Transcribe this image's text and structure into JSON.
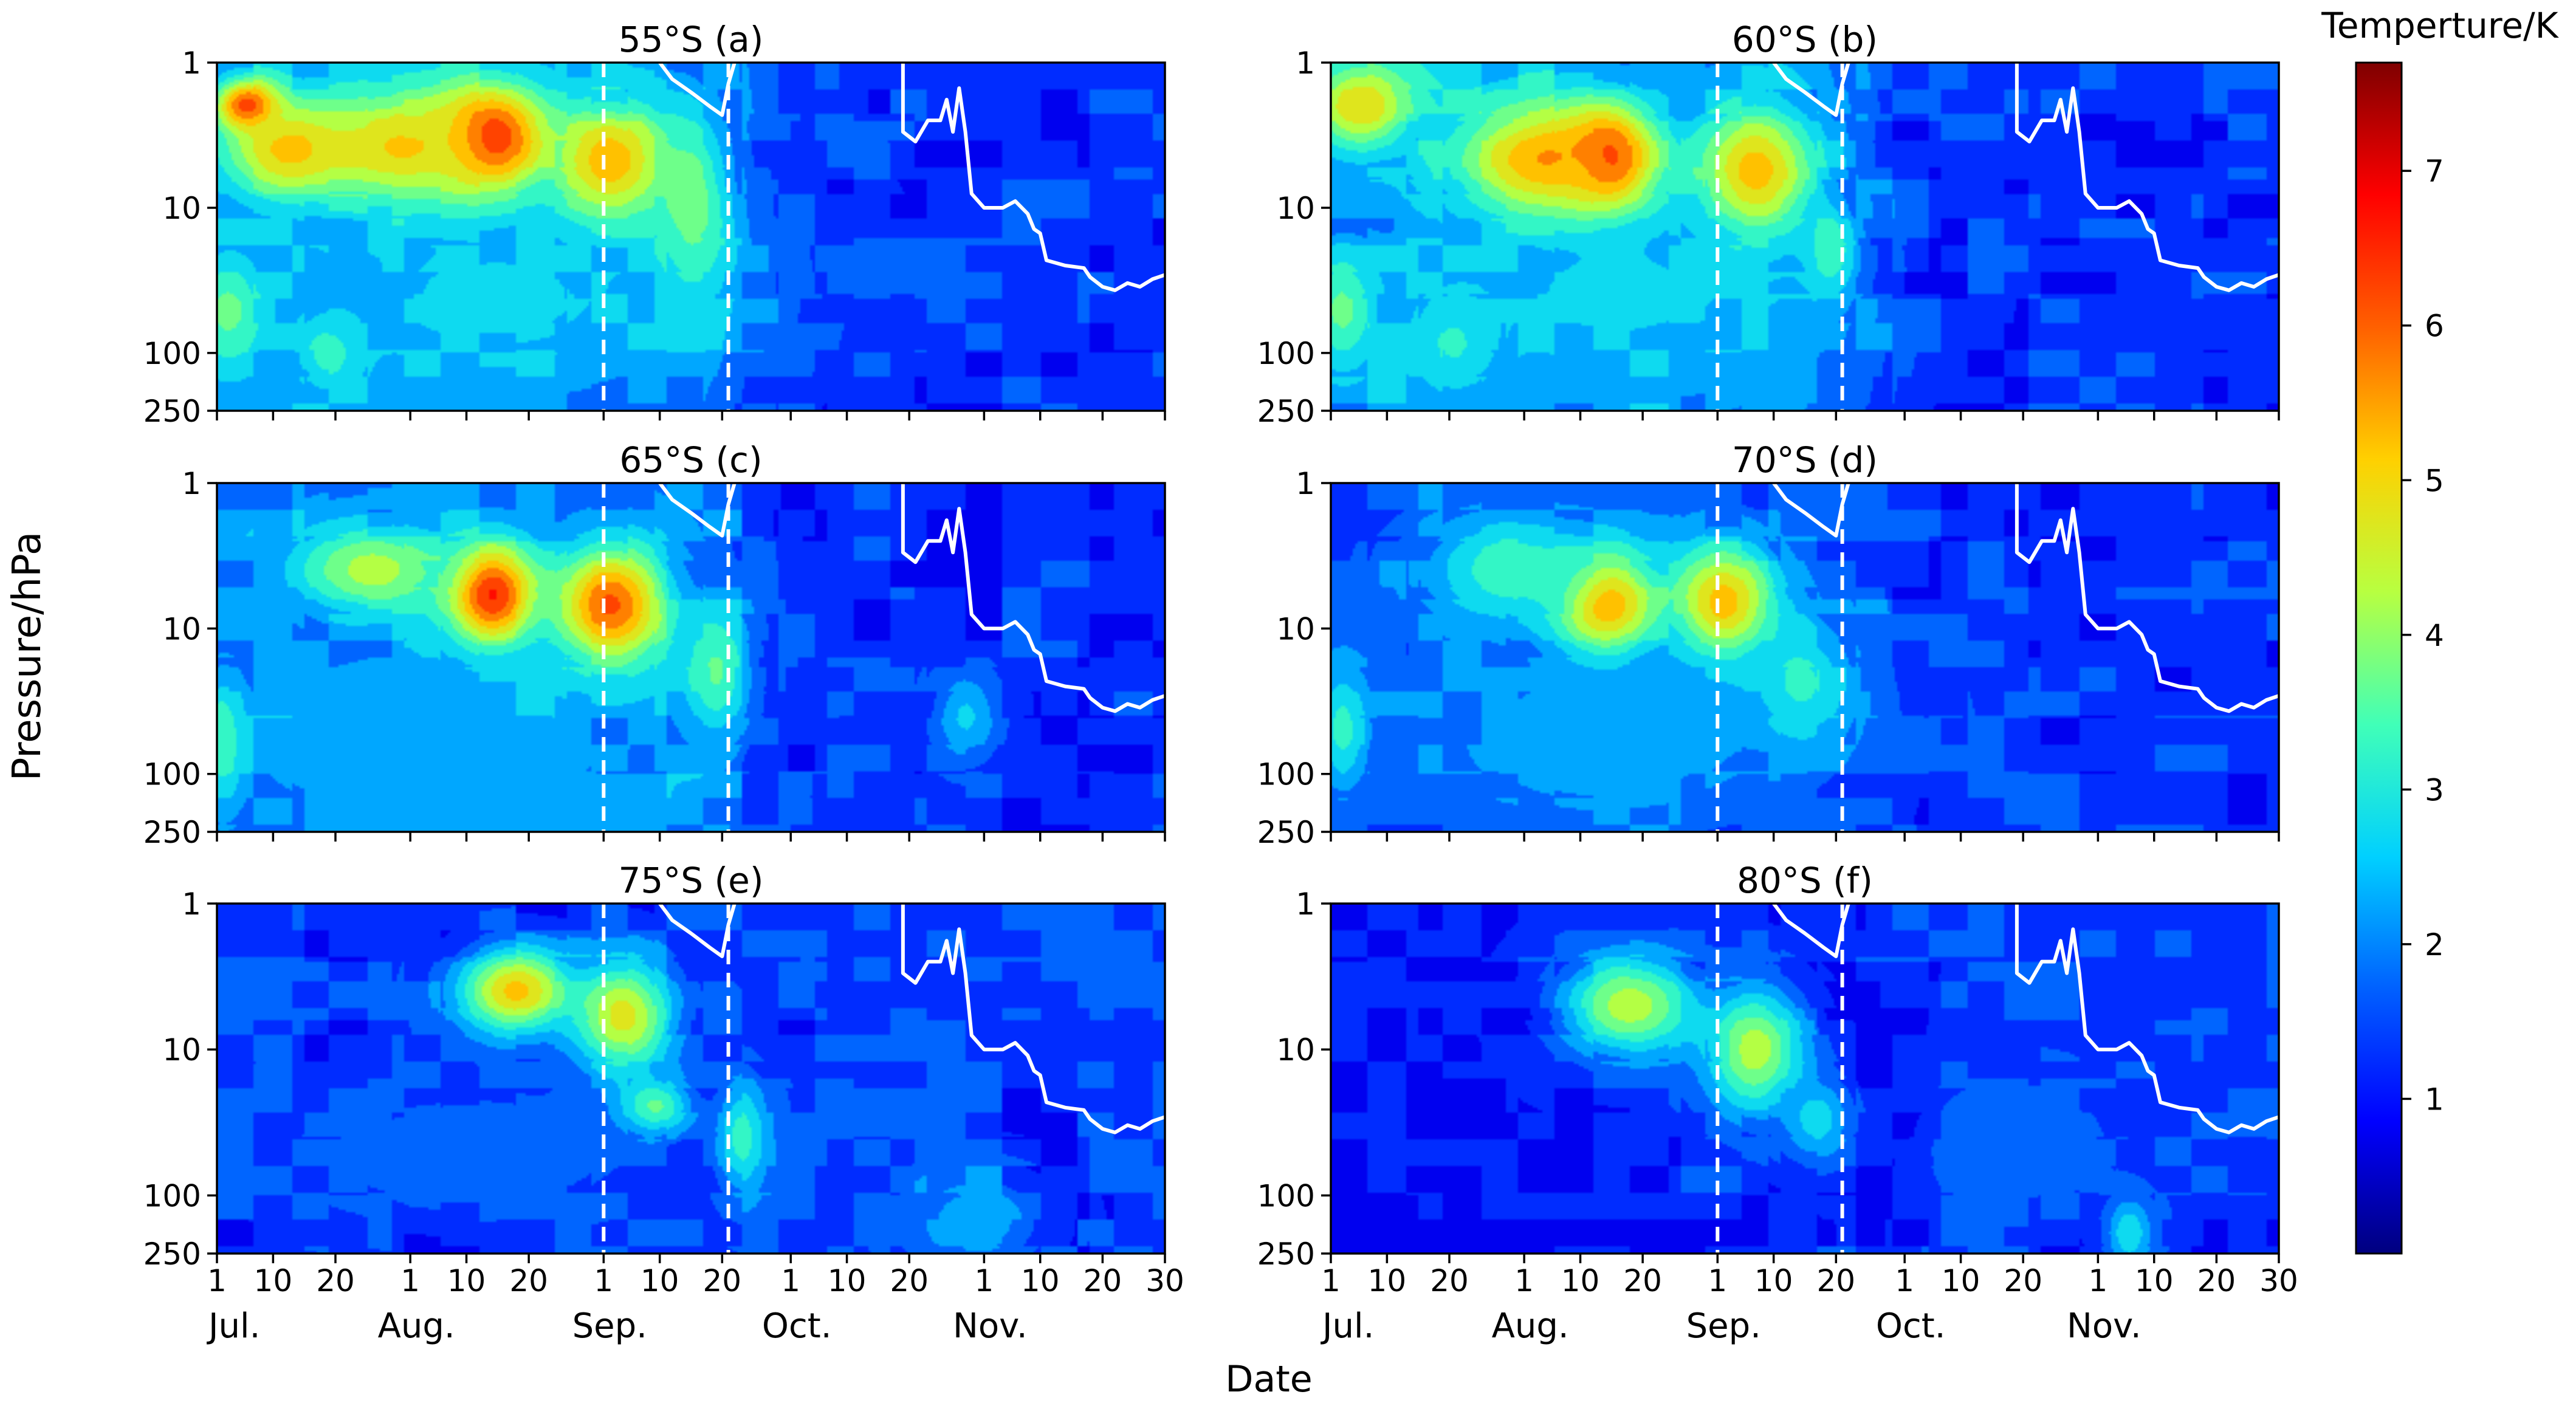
{
  "figure": {
    "ylabel": "Pressure/hPa",
    "xlabel": "Date",
    "colorbar_label": "Temperture/K",
    "colorbar_ticks": [
      1,
      2,
      3,
      4,
      5,
      6,
      7
    ],
    "colorbar_range": [
      0,
      7.7
    ]
  },
  "chart_data": [
    {
      "type": "heatmap",
      "title": "55°S (a)",
      "latitude": "55°S",
      "xlabel": "Date",
      "ylabel": "Pressure/hPa",
      "yticks": [
        "1",
        "10",
        "100",
        "250"
      ],
      "ylim": [
        250,
        1
      ],
      "xticks": [
        "1",
        "10",
        "20",
        "1",
        "10",
        "20",
        "1",
        "10",
        "20",
        "1",
        "10",
        "20",
        "1",
        "10",
        "20",
        "30"
      ],
      "months": [
        "Jul.",
        "Aug.",
        "Sep.",
        "Oct.",
        "Nov."
      ],
      "xlim_days": [
        0,
        152
      ],
      "dashed_lines_days": [
        62,
        82
      ],
      "hotspots": [
        {
          "day": 5,
          "hpa": 2,
          "value": 6.6,
          "day_spread": 5,
          "log_spread": 0.18
        },
        {
          "day": 12,
          "hpa": 4,
          "value": 5.3,
          "day_spread": 10,
          "log_spread": 0.3
        },
        {
          "day": 44,
          "hpa": 3.5,
          "value": 7.4,
          "day_spread": 8,
          "log_spread": 0.35
        },
        {
          "day": 30,
          "hpa": 4,
          "value": 5.2,
          "day_spread": 16,
          "log_spread": 0.4
        },
        {
          "day": 63,
          "hpa": 5,
          "value": 5.6,
          "day_spread": 9,
          "log_spread": 0.4
        },
        {
          "day": 76,
          "hpa": 10,
          "value": 4.0,
          "day_spread": 6,
          "log_spread": 0.6
        },
        {
          "day": 2,
          "hpa": 50,
          "value": 3.8,
          "day_spread": 5,
          "log_spread": 0.35
        },
        {
          "day": 18,
          "hpa": 100,
          "value": 3.6,
          "day_spread": 4,
          "log_spread": 0.2
        },
        {
          "day": 45,
          "hpa": 40,
          "value": 2.6,
          "day_spread": 30,
          "log_spread": 0.6
        }
      ],
      "background": {
        "early": 2.3,
        "late": 1.3,
        "transition_day": 85,
        "noise": 0.7
      }
    },
    {
      "type": "heatmap",
      "title": "60°S (b)",
      "latitude": "60°S",
      "xlabel": "Date",
      "ylabel": "Pressure/hPa",
      "yticks": [
        "1",
        "10",
        "100",
        "250"
      ],
      "ylim": [
        250,
        1
      ],
      "xticks": [
        "1",
        "10",
        "20",
        "1",
        "10",
        "20",
        "1",
        "10",
        "20",
        "1",
        "10",
        "20",
        "1",
        "10",
        "20",
        "30"
      ],
      "months": [
        "Jul.",
        "Aug.",
        "Sep.",
        "Oct.",
        "Nov."
      ],
      "xlim_days": [
        0,
        152
      ],
      "dashed_lines_days": [
        62,
        82
      ],
      "hotspots": [
        {
          "day": 44,
          "hpa": 5,
          "value": 7.4,
          "day_spread": 7,
          "log_spread": 0.35
        },
        {
          "day": 35,
          "hpa": 5,
          "value": 5.8,
          "day_spread": 14,
          "log_spread": 0.4
        },
        {
          "day": 68,
          "hpa": 6,
          "value": 5.5,
          "day_spread": 9,
          "log_spread": 0.45
        },
        {
          "day": 5,
          "hpa": 2,
          "value": 5.0,
          "day_spread": 8,
          "log_spread": 0.3
        },
        {
          "day": 2,
          "hpa": 50,
          "value": 3.8,
          "day_spread": 5,
          "log_spread": 0.35
        },
        {
          "day": 20,
          "hpa": 80,
          "value": 3.4,
          "day_spread": 6,
          "log_spread": 0.3
        },
        {
          "day": 80,
          "hpa": 20,
          "value": 3.6,
          "day_spread": 4,
          "log_spread": 0.3
        },
        {
          "day": 45,
          "hpa": 40,
          "value": 2.6,
          "day_spread": 30,
          "log_spread": 0.6
        }
      ],
      "background": {
        "early": 2.2,
        "late": 1.3,
        "transition_day": 85,
        "noise": 0.7
      }
    },
    {
      "type": "heatmap",
      "title": "65°S (c)",
      "latitude": "65°S",
      "xlabel": "Date",
      "ylabel": "Pressure/hPa",
      "yticks": [
        "1",
        "10",
        "100",
        "250"
      ],
      "ylim": [
        250,
        1
      ],
      "xticks": [
        "1",
        "10",
        "20",
        "1",
        "10",
        "20",
        "1",
        "10",
        "20",
        "1",
        "10",
        "20",
        "1",
        "10",
        "20",
        "30"
      ],
      "months": [
        "Jul.",
        "Aug.",
        "Sep.",
        "Oct.",
        "Nov."
      ],
      "xlim_days": [
        0,
        152
      ],
      "dashed_lines_days": [
        62,
        82
      ],
      "hotspots": [
        {
          "day": 44,
          "hpa": 6,
          "value": 6.9,
          "day_spread": 7,
          "log_spread": 0.35
        },
        {
          "day": 63,
          "hpa": 7,
          "value": 6.2,
          "day_spread": 9,
          "log_spread": 0.4
        },
        {
          "day": 25,
          "hpa": 4,
          "value": 4.3,
          "day_spread": 12,
          "log_spread": 0.3
        },
        {
          "day": 1,
          "hpa": 60,
          "value": 3.8,
          "day_spread": 3,
          "log_spread": 0.4
        },
        {
          "day": 80,
          "hpa": 20,
          "value": 3.6,
          "day_spread": 5,
          "log_spread": 0.4
        },
        {
          "day": 120,
          "hpa": 40,
          "value": 2.6,
          "day_spread": 5,
          "log_spread": 0.3
        },
        {
          "day": 30,
          "hpa": 60,
          "value": 2.5,
          "day_spread": 28,
          "log_spread": 0.6
        }
      ],
      "background": {
        "early": 2.0,
        "late": 1.3,
        "transition_day": 88,
        "noise": 0.7
      }
    },
    {
      "type": "heatmap",
      "title": "70°S (d)",
      "latitude": "70°S",
      "xlabel": "Date",
      "ylabel": "Pressure/hPa",
      "yticks": [
        "1",
        "10",
        "100",
        "250"
      ],
      "ylim": [
        250,
        1
      ],
      "xticks": [
        "1",
        "10",
        "20",
        "1",
        "10",
        "20",
        "1",
        "10",
        "20",
        "1",
        "10",
        "20",
        "1",
        "10",
        "20",
        "30"
      ],
      "months": [
        "Jul.",
        "Aug.",
        "Sep.",
        "Oct.",
        "Nov."
      ],
      "xlim_days": [
        0,
        152
      ],
      "dashed_lines_days": [
        62,
        82
      ],
      "hotspots": [
        {
          "day": 44,
          "hpa": 7,
          "value": 6.2,
          "day_spread": 8,
          "log_spread": 0.35
        },
        {
          "day": 63,
          "hpa": 7,
          "value": 5.5,
          "day_spread": 8,
          "log_spread": 0.4
        },
        {
          "day": 30,
          "hpa": 4,
          "value": 3.5,
          "day_spread": 14,
          "log_spread": 0.35
        },
        {
          "day": 75,
          "hpa": 25,
          "value": 3.4,
          "day_spread": 8,
          "log_spread": 0.4
        },
        {
          "day": 2,
          "hpa": 50,
          "value": 3.3,
          "day_spread": 4,
          "log_spread": 0.4
        },
        {
          "day": 45,
          "hpa": 60,
          "value": 2.3,
          "day_spread": 30,
          "log_spread": 0.6
        }
      ],
      "background": {
        "early": 1.7,
        "late": 1.3,
        "transition_day": 88,
        "noise": 0.7
      }
    },
    {
      "type": "heatmap",
      "title": "75°S (e)",
      "latitude": "75°S",
      "xlabel": "Date",
      "ylabel": "Pressure/hPa",
      "yticks": [
        "1",
        "10",
        "100",
        "250"
      ],
      "ylim": [
        250,
        1
      ],
      "xticks": [
        "1",
        "10",
        "20",
        "1",
        "10",
        "20",
        "1",
        "10",
        "20",
        "1",
        "10",
        "20",
        "1",
        "10",
        "20",
        "30"
      ],
      "months": [
        "Jul.",
        "Aug.",
        "Sep.",
        "Oct.",
        "Nov."
      ],
      "xlim_days": [
        0,
        152
      ],
      "dashed_lines_days": [
        62,
        82
      ],
      "hotspots": [
        {
          "day": 48,
          "hpa": 4,
          "value": 5.2,
          "day_spread": 9,
          "log_spread": 0.3
        },
        {
          "day": 65,
          "hpa": 6,
          "value": 4.8,
          "day_spread": 8,
          "log_spread": 0.4
        },
        {
          "day": 70,
          "hpa": 25,
          "value": 4.2,
          "day_spread": 6,
          "log_spread": 0.2
        },
        {
          "day": 84,
          "hpa": 40,
          "value": 3.4,
          "day_spread": 4,
          "log_spread": 0.4
        },
        {
          "day": 122,
          "hpa": 150,
          "value": 2.4,
          "day_spread": 10,
          "log_spread": 0.3
        },
        {
          "day": 40,
          "hpa": 50,
          "value": 1.8,
          "day_spread": 30,
          "log_spread": 0.5
        }
      ],
      "background": {
        "early": 1.3,
        "late": 1.4,
        "transition_day": 88,
        "noise": 0.7
      }
    },
    {
      "type": "heatmap",
      "title": "80°S (f)",
      "latitude": "80°S",
      "xlabel": "Date",
      "ylabel": "Pressure/hPa",
      "yticks": [
        "1",
        "10",
        "100",
        "250"
      ],
      "ylim": [
        250,
        1
      ],
      "xticks": [
        "1",
        "10",
        "20",
        "1",
        "10",
        "20",
        "1",
        "10",
        "20",
        "1",
        "10",
        "20",
        "1",
        "10",
        "20",
        "30"
      ],
      "months": [
        "Jul.",
        "Aug.",
        "Sep.",
        "Oct.",
        "Nov."
      ],
      "xlim_days": [
        0,
        152
      ],
      "dashed_lines_days": [
        62,
        82
      ],
      "hotspots": [
        {
          "day": 48,
          "hpa": 5,
          "value": 4.3,
          "day_spread": 11,
          "log_spread": 0.35
        },
        {
          "day": 68,
          "hpa": 10,
          "value": 4.3,
          "day_spread": 8,
          "log_spread": 0.45
        },
        {
          "day": 78,
          "hpa": 30,
          "value": 2.8,
          "day_spread": 6,
          "log_spread": 0.3
        },
        {
          "day": 128,
          "hpa": 180,
          "value": 2.9,
          "day_spread": 4,
          "log_spread": 0.25
        },
        {
          "day": 110,
          "hpa": 50,
          "value": 2.0,
          "day_spread": 12,
          "log_spread": 0.4
        }
      ],
      "background": {
        "early": 1.0,
        "late": 1.4,
        "transition_day": 88,
        "noise": 0.6
      }
    }
  ],
  "white_line": {
    "description": "white solid contour line present in each panel",
    "segment1": [
      [
        71,
        1
      ],
      [
        73,
        1.3
      ],
      [
        76,
        1.6
      ],
      [
        79,
        2
      ],
      [
        81,
        2.3
      ],
      [
        82,
        1.4
      ],
      [
        83,
        1
      ]
    ],
    "segment2": [
      [
        110,
        1
      ],
      [
        110,
        3
      ],
      [
        112,
        3.5
      ],
      [
        114,
        2.5
      ],
      [
        116,
        2.5
      ],
      [
        117,
        1.8
      ],
      [
        118,
        3
      ],
      [
        119,
        1.5
      ],
      [
        120,
        3
      ],
      [
        121,
        8
      ],
      [
        123,
        10
      ],
      [
        126,
        10
      ],
      [
        128,
        9
      ],
      [
        130,
        11
      ],
      [
        131,
        14
      ],
      [
        132,
        15
      ],
      [
        133,
        23
      ],
      [
        136,
        25
      ],
      [
        139,
        26
      ],
      [
        140,
        30
      ],
      [
        142,
        35
      ],
      [
        144,
        37
      ],
      [
        146,
        33
      ],
      [
        148,
        35
      ],
      [
        150,
        31
      ],
      [
        152,
        29
      ]
    ]
  }
}
